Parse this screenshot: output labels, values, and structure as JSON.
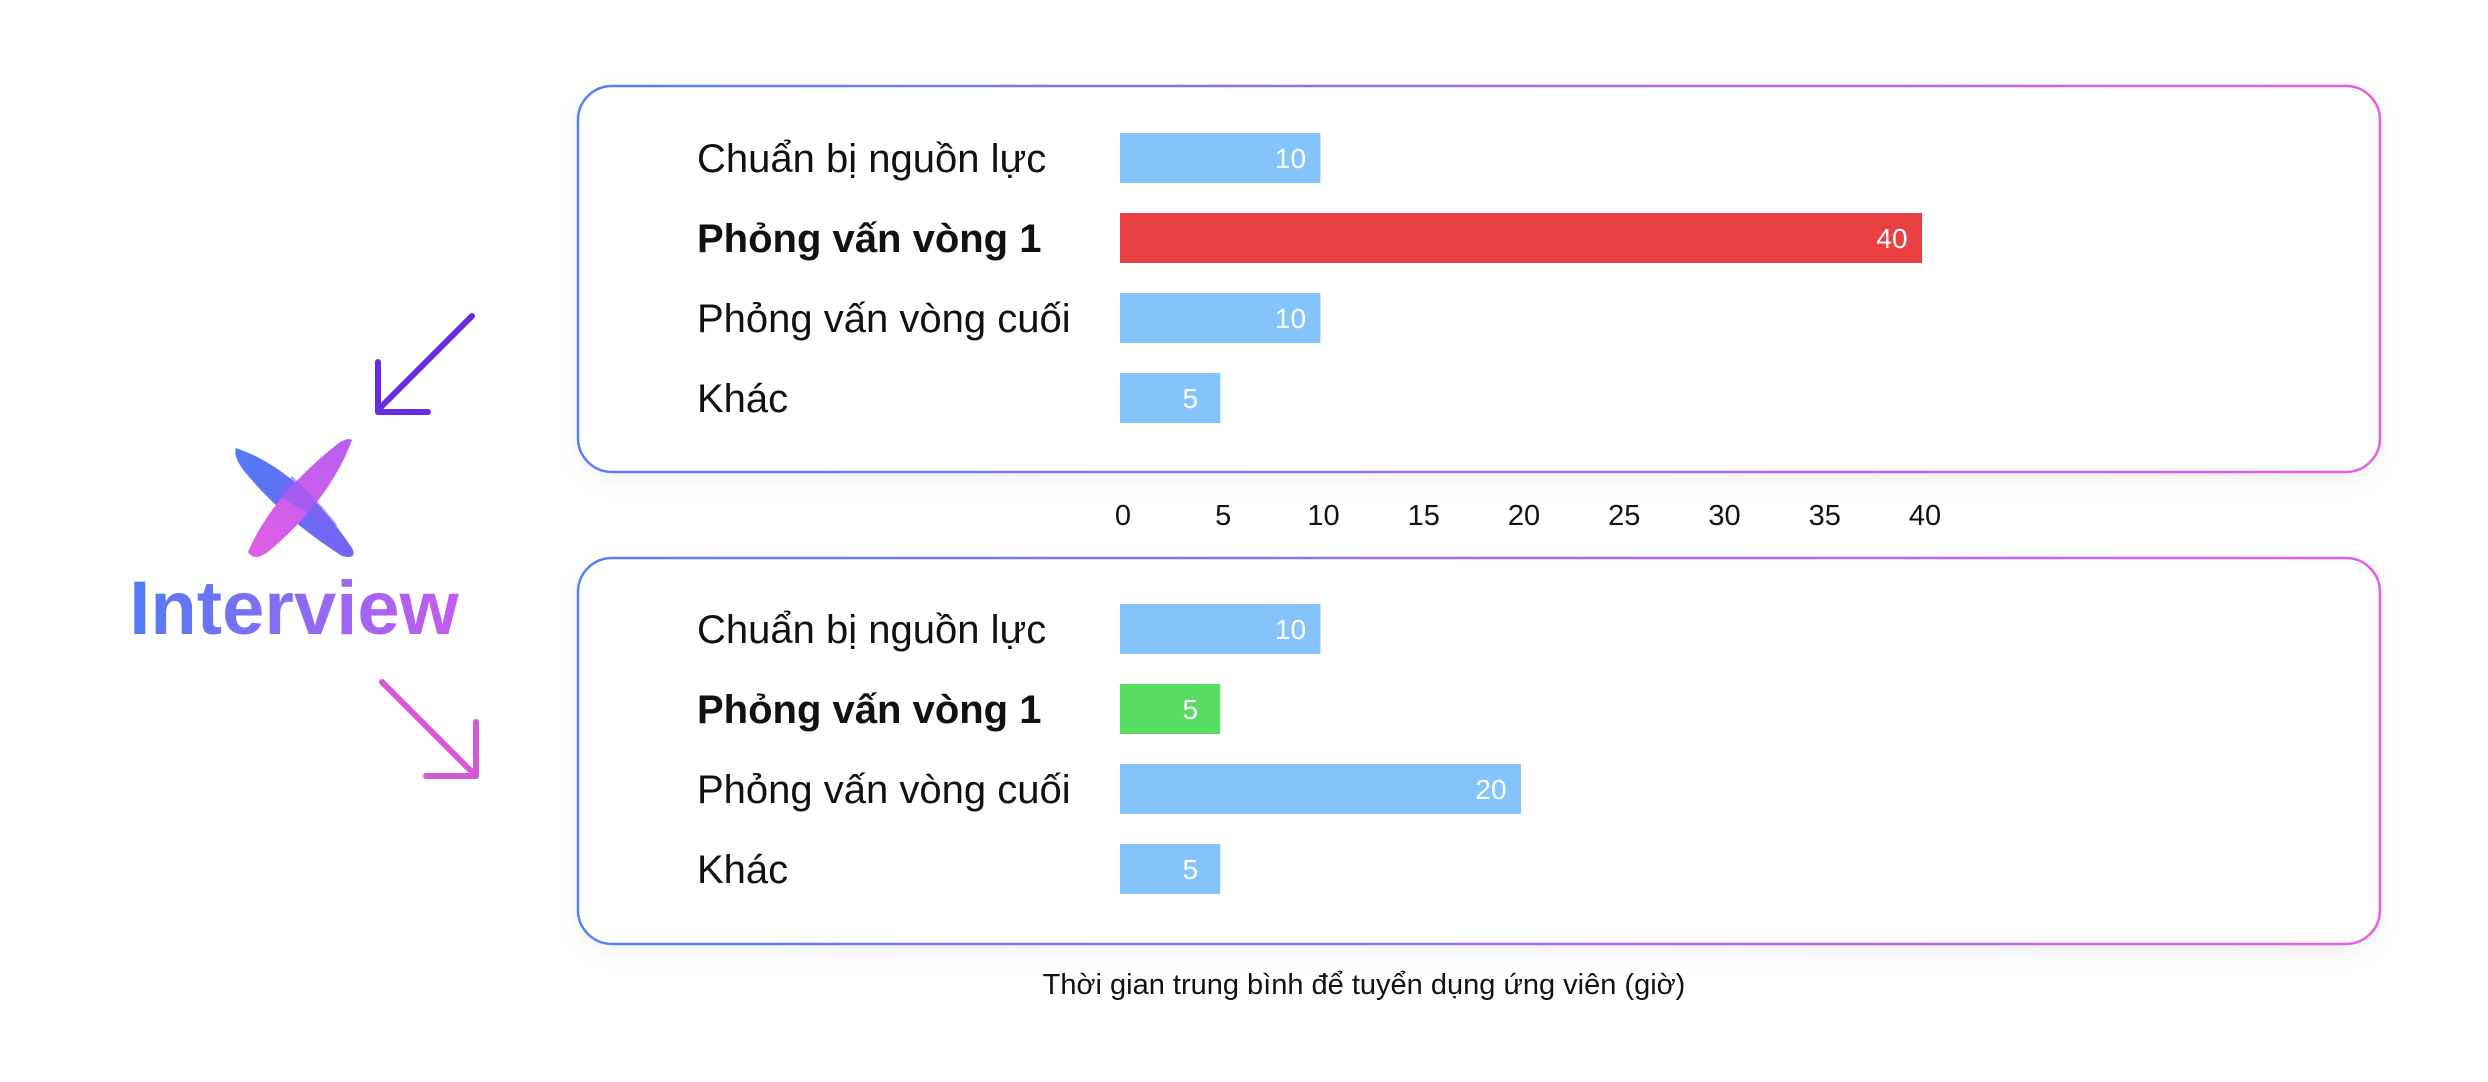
{
  "brand": {
    "name": "Interview",
    "gradient_start": "#4f7cf7",
    "gradient_end": "#c65bf0",
    "arrow_top_color": "#6a2ce0",
    "arrow_bottom_color": "#d25ad8"
  },
  "colors": {
    "bar_default": "#85c4fb",
    "bar_highlight_top": "#ea3f43",
    "bar_highlight_bottom": "#58dc62",
    "panel_border_start": "#5b7df5",
    "panel_border_end": "#e05ee6",
    "label_text": "#111111",
    "value_text": "#ffffff"
  },
  "chart_data": [
    {
      "type": "bar",
      "orientation": "horizontal",
      "categories": [
        "Chuẩn bị nguồn lực",
        "Phỏng vấn vòng 1",
        "Phỏng vấn vòng cuối",
        "Khác"
      ],
      "values": [
        10,
        40,
        10,
        5
      ],
      "highlight_index": 1,
      "xlim": [
        0,
        40
      ]
    },
    {
      "type": "bar",
      "orientation": "horizontal",
      "categories": [
        "Chuẩn bị nguồn lực",
        "Phỏng vấn vòng 1",
        "Phỏng vấn vòng cuối",
        "Khác"
      ],
      "values": [
        10,
        5,
        20,
        5
      ],
      "highlight_index": 1,
      "xlim": [
        0,
        40
      ]
    }
  ],
  "axis": {
    "ticks": [
      0,
      5,
      10,
      15,
      20,
      25,
      30,
      35,
      40
    ],
    "xlabel": "Thời gian trung bình để tuyển dụng ứng viên (giờ)"
  }
}
